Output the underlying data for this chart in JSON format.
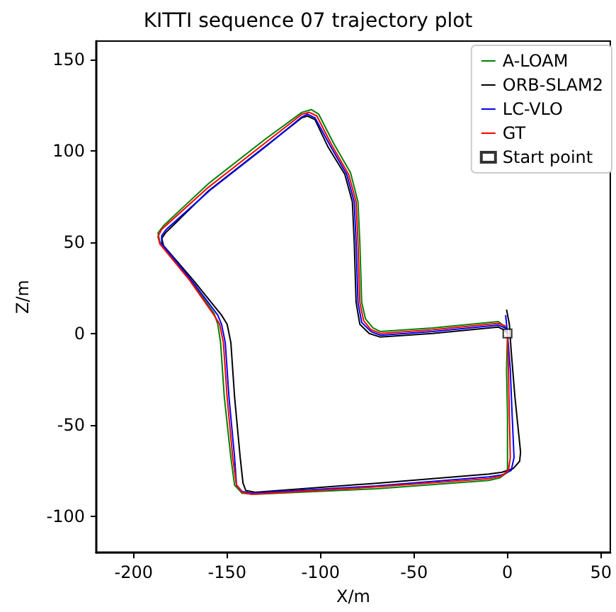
{
  "chart_data": {
    "type": "line",
    "title": "KITTI sequence 07 trajectory plot",
    "xlabel": "X/m",
    "ylabel": "Z/m",
    "xlim": [
      -220,
      55
    ],
    "xticks": [
      -200,
      -150,
      -100,
      -50,
      0,
      50
    ],
    "ylim": [
      -120,
      160
    ],
    "yticks": [
      -100,
      -50,
      0,
      50,
      100,
      150
    ],
    "grid": false,
    "legend": "top right",
    "marker": "none",
    "line_style": "solid",
    "series": [
      {
        "name": "A-LOAM",
        "color": "#008000",
        "x": [
          0,
          -0.5,
          0,
          0,
          0,
          -4,
          -10,
          -70,
          -135,
          -142,
          -146,
          -148,
          -151.5,
          -153.5,
          -155,
          -157,
          -170,
          -186,
          -187,
          -184,
          -160,
          -130,
          -110,
          -105,
          -101,
          -93,
          -84,
          -80,
          -79,
          -78,
          -76,
          -72,
          -68,
          -40,
          -5,
          -0.5
        ],
        "values": [
          0,
          -20,
          -45,
          -68,
          -76,
          -79,
          -80.5,
          -85,
          -88,
          -87.5,
          -83,
          -68,
          -35,
          -5,
          5,
          11,
          30,
          50,
          55,
          59,
          82,
          106,
          121,
          122.5,
          120,
          104,
          88,
          72,
          50,
          17,
          8,
          3,
          1,
          3,
          6.5,
          3
        ]
      },
      {
        "name": "ORB-SLAM2",
        "color": "#000000",
        "x": [
          -0.5,
          1,
          2,
          4,
          6,
          7,
          6.5,
          3,
          -3,
          -10,
          -70,
          -135,
          -140,
          -141.5,
          -143,
          -146,
          -148,
          -150,
          -153,
          -168,
          -184,
          -185,
          -183,
          -160,
          -130,
          -110,
          -107,
          -103,
          -96,
          -87,
          -83,
          -82,
          -81,
          -79,
          -74,
          -68,
          -40,
          -5,
          -2,
          0
        ],
        "values": [
          13,
          5,
          -10,
          -35,
          -55,
          -65,
          -70,
          -74,
          -76,
          -77,
          -82,
          -87,
          -86,
          -82,
          -68,
          -35,
          -5,
          5,
          10,
          29,
          48,
          52,
          55,
          78,
          102,
          118,
          119,
          117,
          102,
          87,
          72,
          50,
          17,
          5,
          0,
          -2,
          0,
          3.5,
          2,
          0
        ]
      },
      {
        "name": "LC-VLO",
        "color": "#0000ff",
        "x": [
          -1,
          0,
          1.5,
          2.5,
          3.5,
          2,
          -3,
          -10,
          -70,
          -137,
          -142,
          -145,
          -146,
          -149,
          -151,
          -153,
          -155,
          -169,
          -185,
          -185,
          -182.5,
          -159,
          -129,
          -110,
          -107,
          -103,
          -95,
          -86,
          -82,
          -81,
          -80,
          -78,
          -73,
          -68,
          -40,
          -5,
          -1,
          0
        ],
        "values": [
          10,
          0,
          -20,
          -45,
          -68,
          -75,
          -77.5,
          -78.5,
          -83.5,
          -87.5,
          -86.5,
          -83,
          -68,
          -35,
          -5,
          5,
          10,
          29,
          49,
          53.5,
          57,
          78.5,
          102.5,
          118.5,
          120,
          118,
          103,
          87,
          72,
          50,
          17,
          6,
          1,
          -1,
          1,
          4.5,
          3,
          0
        ]
      },
      {
        "name": "GT",
        "color": "#ff0000",
        "x": [
          0,
          0.5,
          1,
          1.5,
          0.5,
          -3,
          -10,
          -70,
          -137,
          -142,
          -145,
          -147,
          -150,
          -152,
          -154,
          -157,
          -170,
          -186,
          -187,
          -185,
          -160,
          -130,
          -110,
          -106,
          -102,
          -94,
          -85,
          -81,
          -80,
          -79,
          -77,
          -73,
          -68,
          -40,
          -5,
          -1
        ],
        "values": [
          0,
          -20,
          -45,
          -68,
          -75,
          -78,
          -79.5,
          -84,
          -88,
          -87,
          -83,
          -68,
          -35,
          -5,
          5,
          10,
          29,
          49,
          53,
          57,
          80,
          104,
          120,
          121,
          119,
          103,
          87,
          72,
          50,
          17,
          7,
          2,
          0,
          2,
          5.5,
          4
        ]
      },
      {
        "name": "Start point",
        "type": "scatter",
        "marker": "square",
        "color": "#000000",
        "x": [
          0
        ],
        "values": [
          0
        ]
      }
    ]
  }
}
